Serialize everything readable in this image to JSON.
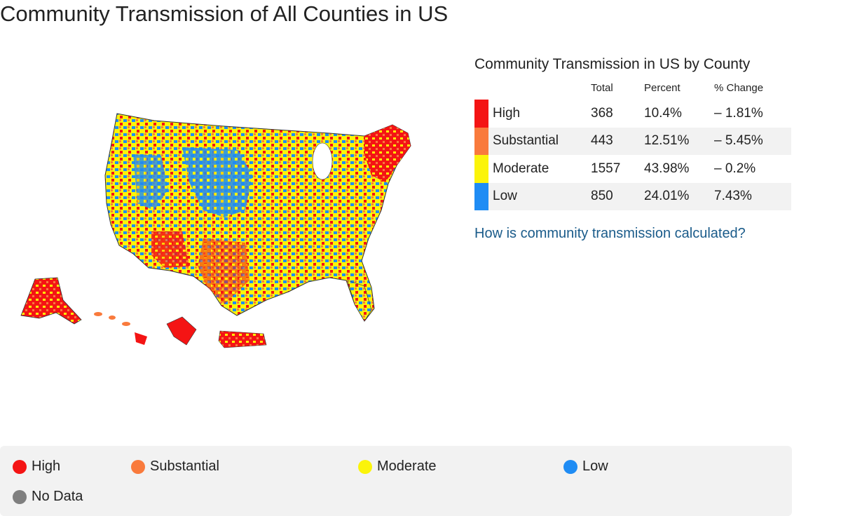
{
  "page": {
    "title": "Community Transmission of All Counties in US"
  },
  "colors": {
    "high": "#f41414",
    "substantial": "#f97a3c",
    "moderate": "#fbf40a",
    "low": "#1f8cf4",
    "no_data": "#7f7f7f"
  },
  "table": {
    "title": "Community Transmission in US by County",
    "headers": {
      "total": "Total",
      "percent": "Percent",
      "change": "% Change"
    },
    "rows": [
      {
        "level": "High",
        "total": "368",
        "percent": "10.4%",
        "change": "– 1.81%",
        "color": "#f41414"
      },
      {
        "level": "Substantial",
        "total": "443",
        "percent": "12.51%",
        "change": "– 5.45%",
        "color": "#f97a3c"
      },
      {
        "level": "Moderate",
        "total": "1557",
        "percent": "43.98%",
        "change": "– 0.2%",
        "color": "#fbf40a"
      },
      {
        "level": "Low",
        "total": "850",
        "percent": "24.01%",
        "change": "7.43%",
        "color": "#1f8cf4"
      }
    ]
  },
  "link": {
    "label": "How is community transmission calculated?"
  },
  "legend": {
    "high": "High",
    "substantial": "Substantial",
    "moderate": "Moderate",
    "low": "Low",
    "no_data": "No Data"
  }
}
